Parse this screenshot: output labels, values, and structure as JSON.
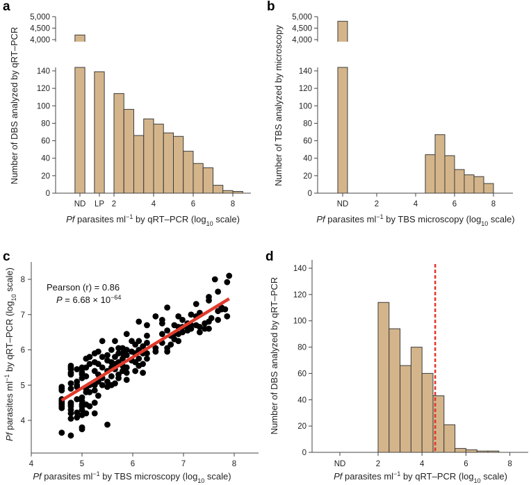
{
  "colors": {
    "bar": "#d4b58b",
    "bar_stroke": "#3a3a3a",
    "point": "#000000",
    "fit_line": "#e03a2c",
    "threshold_line": "#e8332a"
  },
  "chart_data": [
    {
      "panel": "a",
      "type": "bar",
      "title": "",
      "xlabel": {
        "italic": "Pf",
        "pre": " parasites ml",
        "sup": "−1",
        "mid": " by qRT–PCR (log",
        "sub": "10",
        "post": " scale)"
      },
      "ylabel": "Number of DBS analyzed by qRT–PCR",
      "y_break": true,
      "ylim_lower": [
        0,
        140
      ],
      "ylim_upper": [
        4000,
        5000
      ],
      "yticks_lower": [
        "0",
        "20",
        "40",
        "60",
        "80",
        "100",
        "120",
        "140"
      ],
      "yticks_upper": [
        "4,000",
        "4,500",
        "5,000"
      ],
      "xticks": [
        "ND",
        "LP",
        "2",
        "4",
        "6",
        "8"
      ],
      "categories": [
        {
          "label": "ND",
          "count": 4200
        },
        {
          "label": "LP",
          "count": 139
        }
      ],
      "bins": [
        [
          2,
          2.5,
          114
        ],
        [
          2.5,
          3,
          96
        ],
        [
          3,
          3.5,
          66
        ],
        [
          3.5,
          4,
          85
        ],
        [
          4,
          4.5,
          79
        ],
        [
          4.5,
          5,
          69
        ],
        [
          5,
          5.5,
          65
        ],
        [
          5.5,
          6,
          48
        ],
        [
          6,
          6.5,
          34
        ],
        [
          6.5,
          7,
          29
        ],
        [
          7,
          7.5,
          9
        ],
        [
          7.5,
          8,
          3
        ],
        [
          8,
          8.5,
          2
        ]
      ]
    },
    {
      "panel": "b",
      "type": "bar",
      "title": "",
      "xlabel": {
        "italic": "Pf",
        "pre": " parasites ml",
        "sup": "−1",
        "mid": " by TBS microscopy (log",
        "sub": "10",
        "post": " scale)"
      },
      "ylabel": "Number of TBS analyzed by microscopy",
      "y_break": true,
      "ylim_lower": [
        0,
        140
      ],
      "ylim_upper": [
        4000,
        5000
      ],
      "yticks_lower": [
        "0",
        "20",
        "40",
        "60",
        "80",
        "100",
        "120",
        "140"
      ],
      "yticks_upper": [
        "4,000",
        "4,500",
        "5,000"
      ],
      "xticks": [
        "ND",
        "2",
        "4",
        "6",
        "8"
      ],
      "categories": [
        {
          "label": "ND",
          "count": 4800
        }
      ],
      "bins": [
        [
          4.5,
          5,
          44
        ],
        [
          5,
          5.5,
          67
        ],
        [
          5.5,
          6,
          43
        ],
        [
          6,
          6.5,
          27
        ],
        [
          6.5,
          7,
          21
        ],
        [
          7,
          7.5,
          19
        ],
        [
          7.5,
          8,
          11
        ]
      ]
    },
    {
      "panel": "c",
      "type": "scatter",
      "title": "",
      "xlabel": {
        "italic": "Pf",
        "pre": " parasites ml",
        "sup": "−1",
        "mid": " by TBS microscopy (log",
        "sub": "10",
        "post": " scale)"
      },
      "ylabel": {
        "italic": "Pf",
        "pre": " parasites ml",
        "sup": "−1",
        "mid": " by qRT–PCR (log",
        "sub": "10",
        "post": " scale)"
      },
      "xlim": [
        4,
        8.5
      ],
      "ylim": [
        3.2,
        8.5
      ],
      "xticks": [
        "4",
        "5",
        "6",
        "7",
        "8"
      ],
      "yticks": [
        "4",
        "5",
        "6",
        "7",
        "8"
      ],
      "annotation": {
        "pearson": "Pearson (r) = 0.86",
        "p_italic": "P",
        "p_text": " = 6.68 × 10",
        "p_exp": "−64"
      },
      "fit_line": [
        [
          4.6,
          4.57
        ],
        [
          7.9,
          7.45
        ]
      ],
      "points": [
        [
          4.6,
          3.65
        ],
        [
          4.6,
          4.35
        ],
        [
          4.6,
          4.4
        ],
        [
          4.6,
          4.45
        ],
        [
          4.6,
          4.5
        ],
        [
          4.6,
          4.55
        ],
        [
          4.6,
          4.6
        ],
        [
          4.6,
          4.85
        ],
        [
          4.6,
          4.9
        ],
        [
          4.6,
          4.95
        ],
        [
          4.78,
          3.57
        ],
        [
          4.78,
          4.05
        ],
        [
          4.78,
          4.2
        ],
        [
          4.78,
          4.3
        ],
        [
          4.78,
          4.4
        ],
        [
          4.78,
          4.45
        ],
        [
          4.78,
          4.5
        ],
        [
          4.78,
          4.9
        ],
        [
          4.78,
          5.05
        ],
        [
          4.78,
          5.3
        ],
        [
          4.78,
          5.35
        ],
        [
          4.78,
          5.45
        ],
        [
          4.78,
          5.5
        ],
        [
          4.78,
          5.55
        ],
        [
          4.9,
          4.08
        ],
        [
          4.9,
          4.22
        ],
        [
          4.9,
          4.6
        ],
        [
          4.9,
          4.95
        ],
        [
          4.9,
          5.0
        ],
        [
          4.9,
          5.1
        ],
        [
          4.9,
          5.45
        ],
        [
          5.0,
          3.75
        ],
        [
          5.0,
          3.8
        ],
        [
          5.0,
          4.15
        ],
        [
          5.0,
          4.3
        ],
        [
          5.0,
          4.4
        ],
        [
          5.0,
          4.45
        ],
        [
          5.0,
          4.55
        ],
        [
          5.0,
          4.65
        ],
        [
          5.0,
          5.2
        ],
        [
          5.0,
          5.3
        ],
        [
          5.0,
          5.35
        ],
        [
          5.0,
          5.45
        ],
        [
          5.0,
          5.5
        ],
        [
          5.08,
          4.2
        ],
        [
          5.08,
          4.45
        ],
        [
          5.08,
          4.8
        ],
        [
          5.08,
          4.9
        ],
        [
          5.08,
          5.25
        ],
        [
          5.08,
          5.5
        ],
        [
          5.08,
          5.75
        ],
        [
          5.15,
          4.4
        ],
        [
          5.15,
          4.8
        ],
        [
          5.15,
          5.0
        ],
        [
          5.15,
          5.6
        ],
        [
          5.15,
          5.8
        ],
        [
          5.25,
          4.2
        ],
        [
          5.25,
          4.5
        ],
        [
          5.25,
          4.85
        ],
        [
          5.25,
          5.0
        ],
        [
          5.25,
          5.4
        ],
        [
          5.25,
          5.65
        ],
        [
          5.25,
          5.9
        ],
        [
          5.32,
          4.7
        ],
        [
          5.32,
          5.1
        ],
        [
          5.32,
          5.3
        ],
        [
          5.32,
          5.6
        ],
        [
          5.32,
          5.95
        ],
        [
          5.4,
          5.0
        ],
        [
          5.4,
          5.2
        ],
        [
          5.4,
          5.5
        ],
        [
          5.4,
          5.8
        ],
        [
          5.4,
          6.25
        ],
        [
          5.5,
          3.88
        ],
        [
          5.5,
          4.95
        ],
        [
          5.5,
          5.1
        ],
        [
          5.5,
          5.4
        ],
        [
          5.5,
          5.7
        ],
        [
          5.5,
          5.85
        ],
        [
          5.58,
          5.0
        ],
        [
          5.58,
          5.25
        ],
        [
          5.58,
          5.5
        ],
        [
          5.58,
          5.65
        ],
        [
          5.58,
          6.0
        ],
        [
          5.65,
          5.05
        ],
        [
          5.65,
          5.45
        ],
        [
          5.65,
          5.6
        ],
        [
          5.65,
          5.8
        ],
        [
          5.65,
          6.25
        ],
        [
          5.72,
          5.2
        ],
        [
          5.72,
          5.3
        ],
        [
          5.72,
          5.65
        ],
        [
          5.72,
          5.9
        ],
        [
          5.72,
          6.05
        ],
        [
          5.8,
          5.4
        ],
        [
          5.8,
          5.55
        ],
        [
          5.8,
          5.75
        ],
        [
          5.8,
          5.9
        ],
        [
          5.8,
          6.05
        ],
        [
          5.88,
          5.15
        ],
        [
          5.88,
          5.35
        ],
        [
          5.88,
          5.5
        ],
        [
          5.88,
          5.85
        ],
        [
          5.88,
          6.0
        ],
        [
          5.88,
          6.45
        ],
        [
          5.98,
          5.7
        ],
        [
          5.98,
          5.95
        ],
        [
          5.98,
          6.25
        ],
        [
          6.05,
          5.4
        ],
        [
          6.05,
          5.65
        ],
        [
          6.05,
          5.9
        ],
        [
          6.05,
          6.15
        ],
        [
          6.12,
          5.55
        ],
        [
          6.12,
          5.75
        ],
        [
          6.12,
          6.0
        ],
        [
          6.12,
          6.25
        ],
        [
          6.12,
          6.8
        ],
        [
          6.2,
          5.35
        ],
        [
          6.2,
          5.6
        ],
        [
          6.2,
          5.9
        ],
        [
          6.2,
          6.1
        ],
        [
          6.28,
          5.75
        ],
        [
          6.28,
          5.9
        ],
        [
          6.28,
          6.2
        ],
        [
          6.28,
          6.4
        ],
        [
          6.28,
          6.7
        ],
        [
          6.45,
          5.95
        ],
        [
          6.45,
          6.05
        ],
        [
          6.45,
          6.95
        ],
        [
          6.58,
          6.2
        ],
        [
          6.58,
          6.45
        ],
        [
          6.58,
          6.75
        ],
        [
          6.58,
          6.85
        ],
        [
          6.68,
          5.95
        ],
        [
          6.68,
          6.05
        ],
        [
          6.68,
          6.55
        ],
        [
          6.68,
          7.2
        ],
        [
          6.75,
          6.15
        ],
        [
          6.75,
          6.4
        ],
        [
          6.82,
          6.3
        ],
        [
          6.82,
          6.45
        ],
        [
          6.82,
          6.7
        ],
        [
          6.9,
          6.25
        ],
        [
          6.9,
          6.45
        ],
        [
          6.9,
          6.65
        ],
        [
          6.9,
          6.95
        ],
        [
          6.98,
          6.5
        ],
        [
          6.98,
          6.65
        ],
        [
          6.98,
          6.85
        ],
        [
          7.08,
          6.55
        ],
        [
          7.08,
          6.65
        ],
        [
          7.08,
          6.75
        ],
        [
          7.15,
          6.6
        ],
        [
          7.15,
          6.7
        ],
        [
          7.15,
          7.0
        ],
        [
          7.25,
          6.7
        ],
        [
          7.25,
          6.95
        ],
        [
          7.25,
          7.3
        ],
        [
          7.32,
          6.5
        ],
        [
          7.32,
          6.65
        ],
        [
          7.32,
          7.05
        ],
        [
          7.42,
          6.6
        ],
        [
          7.42,
          6.75
        ],
        [
          7.5,
          6.6
        ],
        [
          7.5,
          6.8
        ],
        [
          7.5,
          7.4
        ],
        [
          7.5,
          7.5
        ],
        [
          7.55,
          6.9
        ],
        [
          7.62,
          8.0
        ],
        [
          7.68,
          6.85
        ],
        [
          7.68,
          7.1
        ],
        [
          7.68,
          7.65
        ],
        [
          7.75,
          7.15
        ],
        [
          7.75,
          7.2
        ],
        [
          7.82,
          7.15
        ],
        [
          7.86,
          6.95
        ],
        [
          7.86,
          7.92
        ],
        [
          7.9,
          8.1
        ]
      ]
    },
    {
      "panel": "d",
      "type": "bar",
      "title": "",
      "xlabel": {
        "italic": "Pf",
        "pre": " parasites ml",
        "sup": "−1",
        "mid": " by qRT–PCR (log",
        "sub": "10",
        "post": " scale)"
      },
      "ylabel": "Number of DBS analyzed by qRT–PCR",
      "ylim": [
        0,
        140
      ],
      "yticks": [
        "0",
        "20",
        "40",
        "60",
        "80",
        "100",
        "120",
        "140"
      ],
      "xticks": [
        "ND",
        "2",
        "4",
        "6",
        "8"
      ],
      "threshold_x": 4.6,
      "bins": [
        [
          2,
          2.5,
          114
        ],
        [
          2.5,
          3,
          94
        ],
        [
          3,
          3.5,
          66
        ],
        [
          3.5,
          4,
          80
        ],
        [
          4,
          4.5,
          60
        ],
        [
          4.5,
          5,
          43
        ],
        [
          5,
          5.5,
          21
        ],
        [
          5.5,
          6,
          3
        ],
        [
          6,
          6.5,
          2
        ],
        [
          6.5,
          7,
          1
        ],
        [
          7,
          7.5,
          1
        ],
        [
          7.5,
          8,
          0
        ],
        [
          8,
          8.5,
          0
        ]
      ]
    }
  ],
  "panel_letters": [
    "a",
    "b",
    "c",
    "d"
  ]
}
